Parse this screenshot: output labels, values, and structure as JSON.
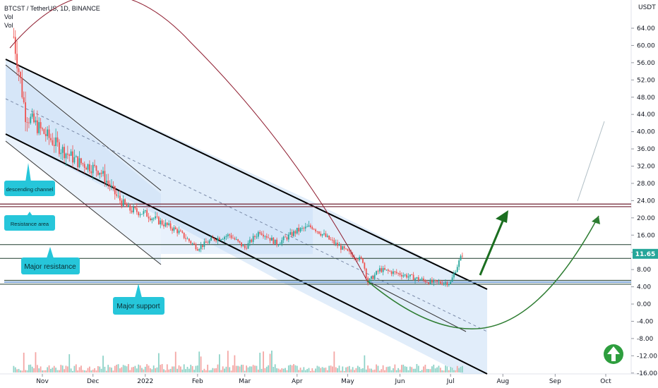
{
  "header": {
    "symbol_line": "BTCST / TetherUS, 1D, BINANCE",
    "vol_line_1": "Vol",
    "vol_line_2": "Vol"
  },
  "chart_data": {
    "type": "candlestick",
    "currency_label": "USDT",
    "y_ticks": [
      "64.00",
      "60.00",
      "56.00",
      "52.00",
      "48.00",
      "44.00",
      "40.00",
      "36.00",
      "32.00",
      "28.00",
      "24.00",
      "20.00",
      "16.00",
      "12.00",
      "8.00",
      "4.00",
      "0.00",
      "-4.00",
      "-8.00",
      "-12.00",
      "-16.00"
    ],
    "y_tick_values": [
      64,
      60,
      56,
      52,
      48,
      44,
      40,
      36,
      32,
      28,
      24,
      20,
      16,
      12,
      8,
      4,
      0,
      -4,
      -8,
      -12,
      -16
    ],
    "ylim": [
      -17,
      70
    ],
    "x_ticks": [
      "Nov",
      "Dec",
      "2022",
      "Feb",
      "Mar",
      "Apr",
      "May",
      "Jun",
      "Jul",
      "Aug",
      "Sep",
      "Oct"
    ],
    "x_tick_dates": [
      "2021-11-01",
      "2021-12-01",
      "2022-01-01",
      "2022-02-01",
      "2022-03-01",
      "2022-04-01",
      "2022-05-01",
      "2022-06-01",
      "2022-07-01",
      "2022-08-01",
      "2022-09-01",
      "2022-10-01"
    ],
    "last_price": "11.65",
    "price_path_dates": [
      "2021-10-15",
      "2021-10-22",
      "2021-11-01",
      "2021-11-12",
      "2021-11-22",
      "2021-12-05",
      "2021-12-15",
      "2021-12-22",
      "2022-01-01",
      "2022-01-10",
      "2022-01-20",
      "2022-02-01",
      "2022-02-10",
      "2022-02-20",
      "2022-03-01",
      "2022-03-10",
      "2022-03-20",
      "2022-04-01",
      "2022-04-10",
      "2022-04-20",
      "2022-05-01",
      "2022-05-10",
      "2022-05-13",
      "2022-05-20",
      "2022-06-01",
      "2022-06-10",
      "2022-06-20",
      "2022-07-01",
      "2022-07-04",
      "2022-07-08"
    ],
    "price_path_values": [
      62,
      44,
      40,
      36,
      33,
      31,
      25,
      22,
      21,
      19,
      17,
      13,
      15,
      16,
      13,
      17,
      14,
      17,
      18,
      15,
      12,
      10,
      5,
      8,
      7,
      6,
      5,
      5,
      8,
      11.65
    ],
    "annotations": [
      "descending channel",
      "Resistance area",
      "Major resistance",
      "Major support"
    ],
    "horizontal_levels": [
      22.6,
      23.2,
      13.8,
      10.6,
      5.5,
      4.6
    ],
    "projection_arc_low": -5.5,
    "target_arrow_value": 20
  },
  "colors": {
    "channel_fill": "#bcd6f5",
    "up_candle": "#26a69a",
    "down_candle": "#ef5350",
    "arc_red": "#8e1b2e",
    "arc_green": "#2e7d32",
    "callout_fill": "#26c6da",
    "price_badge": "#26a69a"
  },
  "badge_icon": "up-arrow-circle-icon"
}
